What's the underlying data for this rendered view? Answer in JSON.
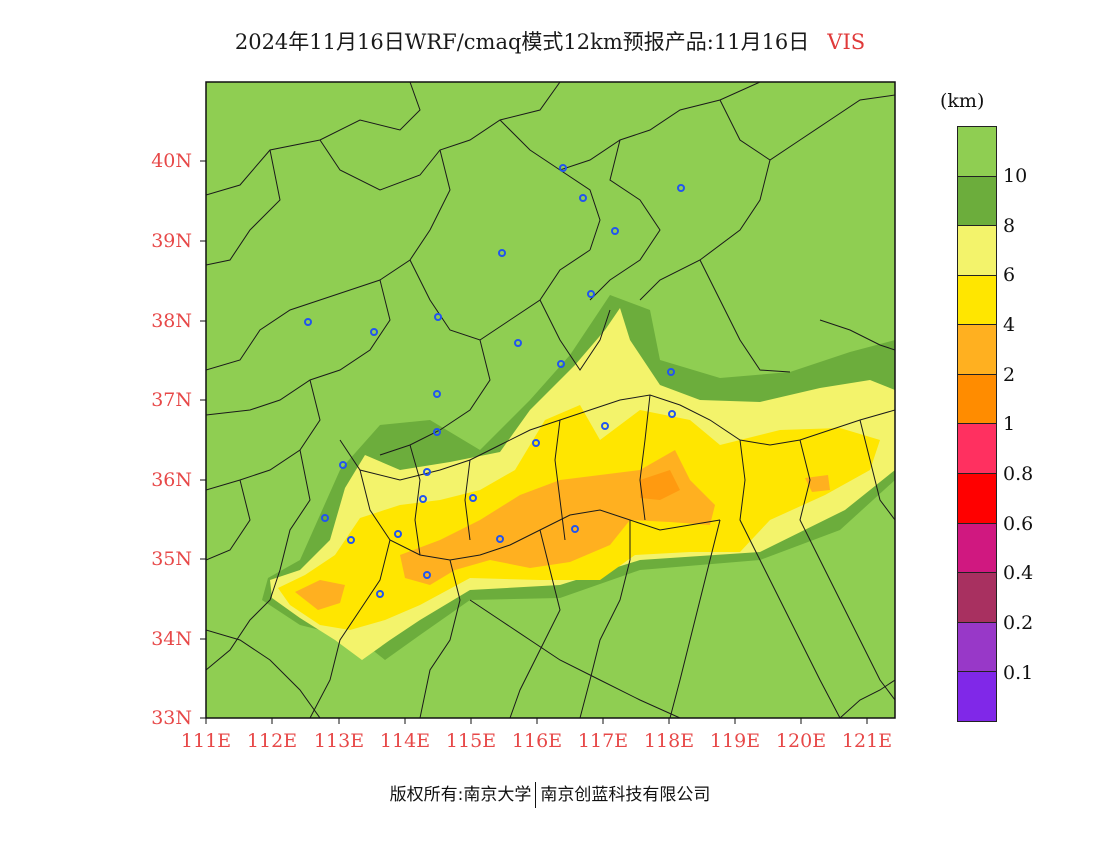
{
  "title": {
    "text": "2024年11月16日WRF/cmaq模式12km预报产品:11月16日",
    "variable": "VIS"
  },
  "unit": "(km)",
  "axes": {
    "lat_ticks": [
      "40N",
      "39N",
      "38N",
      "37N",
      "36N",
      "35N",
      "34N",
      "33N"
    ],
    "lon_ticks": [
      "111E",
      "112E",
      "113E",
      "114E",
      "115E",
      "116E",
      "117E",
      "118E",
      "119E",
      "120E",
      "121E"
    ],
    "tick_color": "#e74848"
  },
  "colorbar": {
    "colors_top_to_bottom": [
      "#8fce52",
      "#6cad3c",
      "#f3f36b",
      "#ffe600",
      "#ffb020",
      "#ff8c00",
      "#ff3060",
      "#ff0000",
      "#d01880",
      "#a83060",
      "#9838c8",
      "#8028e8"
    ],
    "labels": [
      "10",
      "8",
      "6",
      "4",
      "2",
      "1",
      "0.8",
      "0.6",
      "0.4",
      "0.2",
      "0.1"
    ]
  },
  "map_colors": {
    "background": "#8fce52",
    "dark_green": "#6cad3c",
    "pale_yellow": "#f3f36b",
    "yellow": "#ffe600",
    "orange": "#ffb020",
    "dark_orange": "#ff8c00",
    "city_marker": "#2255ee",
    "boundary": "#1a1a1a"
  },
  "copyright": {
    "left": "版权所有:南京大学",
    "right": "南京创蓝科技有限公司"
  }
}
